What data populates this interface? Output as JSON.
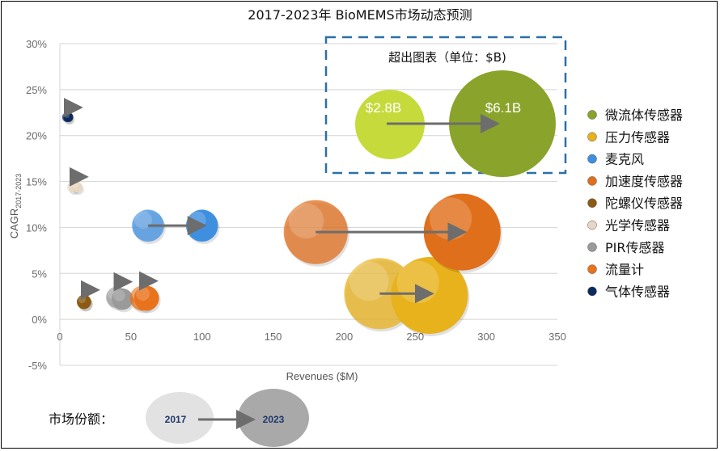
{
  "chart_data": {
    "type": "bubble",
    "title": "2017-2023年 BioMEMS市场动态预测",
    "xlabel": "Revenues ($M)",
    "ylabel": "CAGR",
    "ylabel_sub": "2017-2023",
    "xlim": [
      0,
      350
    ],
    "ylim": [
      -5,
      30
    ],
    "x_ticks": [
      "0",
      "50",
      "100",
      "150",
      "200",
      "250",
      "300",
      "350"
    ],
    "y_ticks": [
      "-5%",
      "0%",
      "5%",
      "10%",
      "15%",
      "20%",
      "25%",
      "30%"
    ],
    "grid": "horizontal",
    "legend_position": "right",
    "series": [
      {
        "name": "微流体传感器",
        "color": "#8aa32a",
        "points": []
      },
      {
        "name": "压力传感器",
        "color": "#e8b21c",
        "points": [
          {
            "year": 2017,
            "x": 225,
            "y": 2.8,
            "size": 1.0
          },
          {
            "year": 2023,
            "x": 260,
            "y": 2.6,
            "size": 1.08
          }
        ]
      },
      {
        "name": "麦克风",
        "color": "#3f8fe0",
        "points": [
          {
            "year": 2017,
            "x": 62,
            "y": 10.2,
            "size": 0.45
          },
          {
            "year": 2023,
            "x": 100,
            "y": 10.2,
            "size": 0.45
          }
        ]
      },
      {
        "name": "加速度传感器",
        "color": "#e06f1c",
        "points": [
          {
            "year": 2017,
            "x": 180,
            "y": 9.5,
            "size": 0.9
          },
          {
            "year": 2023,
            "x": 283,
            "y": 9.5,
            "size": 1.08
          }
        ]
      },
      {
        "name": "陀螺仪传感器",
        "color": "#8c5a12",
        "points": [
          {
            "year": 2017,
            "x": 17,
            "y": 1.9,
            "size": 0.2
          },
          {
            "year": 2023,
            "x": 17,
            "y": 1.9,
            "size": 0.2
          }
        ]
      },
      {
        "name": "光学传感器",
        "color": "#e9d6c2",
        "points": [
          {
            "year": 2017,
            "x": 9,
            "y": 14.4,
            "size": 0.15
          },
          {
            "year": 2023,
            "x": 12,
            "y": 14.4,
            "size": 0.15
          }
        ]
      },
      {
        "name": "PIR传感器",
        "color": "#9a9a9a",
        "points": [
          {
            "year": 2017,
            "x": 40,
            "y": 2.4,
            "size": 0.3
          },
          {
            "year": 2023,
            "x": 44,
            "y": 2.2,
            "size": 0.3
          }
        ]
      },
      {
        "name": "流量计",
        "color": "#e8731c",
        "points": [
          {
            "year": 2017,
            "x": 58,
            "y": 2.3,
            "size": 0.35
          },
          {
            "year": 2023,
            "x": 61,
            "y": 2.3,
            "size": 0.35
          }
        ]
      },
      {
        "name": "气体传感器",
        "color": "#0d2a5c",
        "points": [
          {
            "year": 2017,
            "x": 5,
            "y": 22.0,
            "size": 0.1
          },
          {
            "year": 2023,
            "x": 6,
            "y": 22.0,
            "size": 0.1
          }
        ]
      }
    ],
    "off_scale_inset": {
      "title": "超出图表（单位：$B)",
      "series": "微流体传感器",
      "value_2017": "$2.8B",
      "value_2023": "$6.1B"
    },
    "share_legend": {
      "label": "市场份额：",
      "from": "2017",
      "to": "2023"
    }
  }
}
